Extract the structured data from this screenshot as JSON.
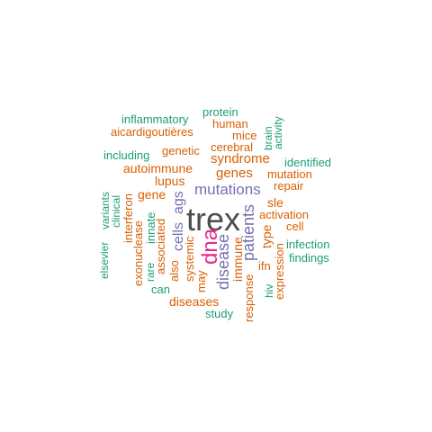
{
  "colors": {
    "dark": "#4d4d4d",
    "pink": "#e7298a",
    "purple": "#7570b3",
    "orange": "#d95f02",
    "green": "#1b9e77"
  },
  "words": {
    "trex": "trex",
    "dna": "dna",
    "mutations": "mutations",
    "patients": "patients",
    "disease": "disease",
    "cells": "cells",
    "ags": "ags",
    "syndrome": "syndrome",
    "genes": "genes",
    "autoimmune": "autoimmune",
    "lupus": "lupus",
    "gene": "gene",
    "cerebral": "cerebral",
    "genetic": "genetic",
    "mice": "mice",
    "human": "human",
    "aicardigoutieres": "aicardigoutières",
    "protein": "protein",
    "inflammatory": "inflammatory",
    "including": "including",
    "brain": "brain",
    "activity": "activity",
    "identified": "identified",
    "mutation": "mutation",
    "repair": "repair",
    "sle": "sle",
    "activation": "activation",
    "cell": "cell",
    "type": "type",
    "infection": "infection",
    "findings": "findings",
    "ifn": "ifn",
    "hiv": "hiv",
    "expression": "expression",
    "immune": "immune",
    "response": "response",
    "may": "may",
    "systemic": "systemic",
    "also": "also",
    "associated": "associated",
    "innate": "innate",
    "rare": "rare",
    "exonuclease": "exonuclease",
    "interferon": "interferon",
    "clinical": "clinical",
    "variants": "variants",
    "elsevier": "elsevier",
    "can": "can",
    "diseases": "diseases",
    "study": "study"
  }
}
